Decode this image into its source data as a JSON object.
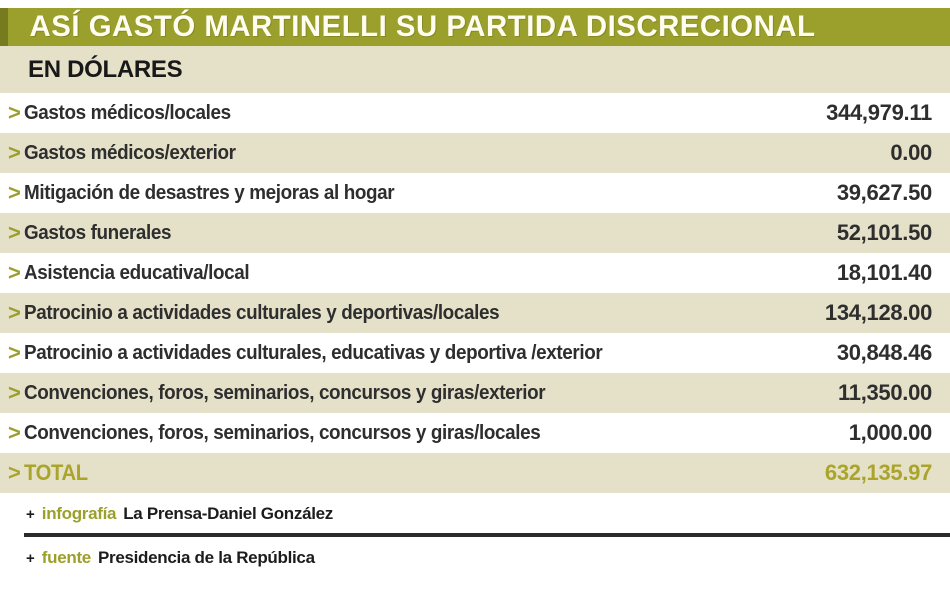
{
  "header": {
    "title": "ASÍ GASTÓ MARTINELLI SU PARTIDA DISCRECIONAL",
    "subtitle": "EN DÓLARES"
  },
  "icons": {
    "chevron": ">",
    "plus": "+"
  },
  "table": {
    "rows": [
      {
        "label": "Gastos médicos/locales",
        "value": "344,979.11"
      },
      {
        "label": "Gastos médicos/exterior",
        "value": "0.00"
      },
      {
        "label": "Mitigación de desastres y mejoras al hogar",
        "value": "39,627.50"
      },
      {
        "label": "Gastos funerales",
        "value": "52,101.50"
      },
      {
        "label": "Asistencia educativa/local",
        "value": "18,101.40"
      },
      {
        "label": "Patrocinio a actividades culturales y deportivas/locales",
        "value": "134,128.00"
      },
      {
        "label": "Patrocinio a actividades culturales, educativas y deportiva /exterior",
        "value": "30,848.46"
      },
      {
        "label": "Convenciones, foros, seminarios, concursos y giras/exterior",
        "value": "11,350.00"
      },
      {
        "label": "Convenciones, foros, seminarios, concursos y giras/locales",
        "value": "1,000.00"
      }
    ]
  },
  "total": {
    "label": "TOTAL",
    "value": "632,135.97"
  },
  "footer": {
    "credit": {
      "label": "infografía",
      "text": "La Prensa-Daniel González"
    },
    "source": {
      "label": "fuente",
      "text": "Presidencia de la República"
    }
  },
  "colors": {
    "olive": "#9ba02c",
    "olive_dark": "#767b1f",
    "cream": "#e5e1c9",
    "ink": "#2e2e2e",
    "total_text": "#aaa52a"
  },
  "chart_data": {
    "type": "table",
    "title": "ASÍ GASTÓ MARTINELLI SU PARTIDA DISCRECIONAL",
    "subtitle": "EN DÓLARES",
    "categories": [
      "Gastos médicos/locales",
      "Gastos médicos/exterior",
      "Mitigación de desastres y mejoras al hogar",
      "Gastos funerales",
      "Asistencia educativa/local",
      "Patrocinio a actividades culturales y deportivas/locales",
      "Patrocinio a actividades culturales, educativas y deportiva /exterior",
      "Convenciones, foros, seminarios, concursos y giras/exterior",
      "Convenciones, foros, seminarios, concursos y giras/locales"
    ],
    "values": [
      344979.11,
      0.0,
      39627.5,
      52101.5,
      18101.4,
      134128.0,
      30848.46,
      11350.0,
      1000.0
    ],
    "total": 632135.97,
    "unit": "USD",
    "credit": "La Prensa-Daniel González",
    "source": "Presidencia de la República"
  }
}
